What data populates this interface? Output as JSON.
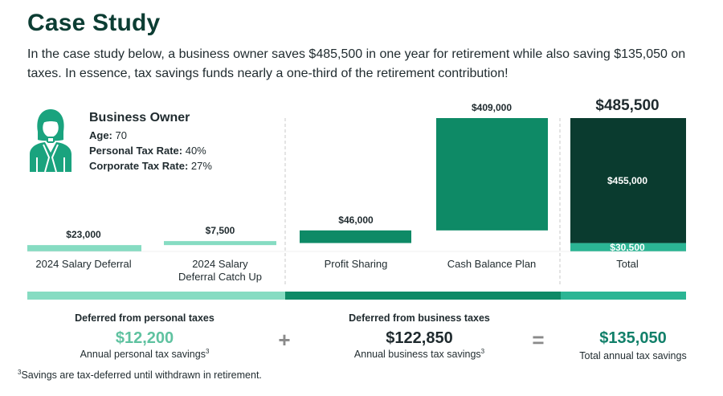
{
  "title": "Case Study",
  "intro": "In the case study below, a business owner saves $485,500 in one year for retirement while also saving $135,050 on taxes. In essence, tax savings funds nearly a one-third of the retirement contribution!",
  "owner": {
    "name": "Business Owner",
    "rows": [
      {
        "label": "Age:",
        "value": "70"
      },
      {
        "label": "Personal Tax Rate:",
        "value": "40%"
      },
      {
        "label": "Corporate Tax Rate:",
        "value": "27%"
      }
    ]
  },
  "colors": {
    "light": "#86dcc2",
    "medium": "#0e8a66",
    "dark": "#0a3b2f",
    "teal": "#2bb594",
    "text_light_green": "#5fc2a0",
    "text_dark_green": "#12806a",
    "divider": "#c8c8c8"
  },
  "chart_data": {
    "type": "bar",
    "categories": [
      "2024 Salary Deferral",
      "2024 Salary Deferral Catch Up",
      "Profit Sharing",
      "Cash Balance Plan",
      "Total"
    ],
    "category_lines": [
      [
        "2024 Salary Deferral"
      ],
      [
        "2024 Salary",
        "Deferral Catch Up"
      ],
      [
        "Profit Sharing"
      ],
      [
        "Cash Balance Plan"
      ],
      [
        "Total"
      ]
    ],
    "bars": [
      {
        "category": "2024 Salary Deferral",
        "base": 0,
        "value": 23000,
        "label": "$23,000",
        "color": "light"
      },
      {
        "category": "2024 Salary Deferral Catch Up",
        "base": 23000,
        "value": 7500,
        "label": "$7,500",
        "color": "light"
      },
      {
        "category": "Profit Sharing",
        "base": 30500,
        "value": 46000,
        "label": "$46,000",
        "color": "medium"
      },
      {
        "category": "Cash Balance Plan",
        "base": 76500,
        "value": 409000,
        "label": "$409,000",
        "color": "medium"
      }
    ],
    "total": {
      "category": "Total",
      "value": 485500,
      "label": "$485,500",
      "segments": [
        {
          "value": 30500,
          "label": "$30,500",
          "color": "teal"
        },
        {
          "value": 455000,
          "label": "$455,000",
          "color": "dark"
        }
      ]
    },
    "ylim": [
      0,
      485500
    ],
    "groups": [
      {
        "name": "personal",
        "color": "light",
        "from": 0,
        "to": 2
      },
      {
        "name": "business",
        "color": "medium",
        "from": 2,
        "to": 4
      },
      {
        "name": "total",
        "color": "teal",
        "from": 4,
        "to": 5
      }
    ]
  },
  "savings": {
    "personal": {
      "head": "Deferred from personal taxes",
      "value": "$12,200",
      "sub": "Annual personal tax savings",
      "sup": "3"
    },
    "plus": "+",
    "business": {
      "head": "Deferred from business taxes",
      "value": "$122,850",
      "sub": "Annual business tax savings",
      "sup": "3"
    },
    "equals": "=",
    "total": {
      "value": "$135,050",
      "sub": "Total annual tax savings"
    }
  },
  "footnote": {
    "sup": "3",
    "text": "Savings are tax-deferred until withdrawn in retirement."
  }
}
